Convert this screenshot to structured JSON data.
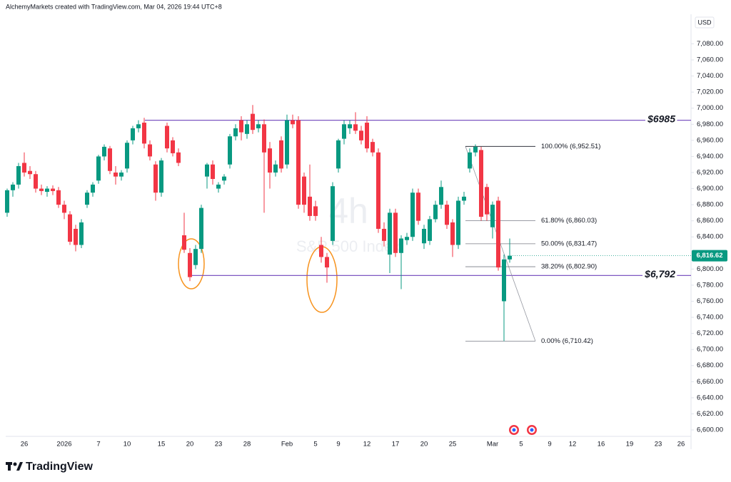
{
  "header": {
    "text": "AlchemyMarkets created with TradingView.com, Mar 04, 2026 19:44 UTC+8"
  },
  "footer": {
    "brand": "TradingView"
  },
  "chart_data": {
    "type": "candlestick",
    "watermark": {
      "interval": "4h",
      "symbol": "S&P 500 Index"
    },
    "currency": "USD",
    "up_color": "#089981",
    "down_color": "#f23645",
    "level_color": "#7e57c2",
    "grid": false,
    "categories": [
      null,
      null,
      null,
      "26",
      null,
      null,
      null,
      null,
      null,
      null,
      "2026",
      null,
      null,
      null,
      null,
      null,
      "7",
      null,
      null,
      null,
      null,
      "10",
      null,
      null,
      null,
      null,
      null,
      "15",
      null,
      null,
      null,
      null,
      "20",
      null,
      null,
      null,
      null,
      "23",
      null,
      null,
      null,
      null,
      "28",
      null,
      null,
      null,
      null,
      null,
      null,
      "Feb",
      null,
      null,
      null,
      null,
      "5",
      null,
      null,
      null,
      "9",
      null,
      null,
      null,
      null,
      "12",
      null,
      null,
      null,
      null,
      "17",
      null,
      null,
      null,
      null,
      "20",
      null,
      null,
      null,
      null,
      "25",
      null,
      null,
      null,
      null,
      null,
      null,
      "Mar",
      null,
      null,
      null,
      null,
      "5",
      null,
      null,
      null,
      null,
      "9",
      null,
      null,
      null,
      "12",
      null,
      null,
      null,
      null,
      "16",
      null,
      null,
      null,
      null,
      "19",
      null,
      null,
      null,
      null,
      "23",
      null,
      null,
      null,
      "26"
    ],
    "open": [
      6870,
      6898,
      6905,
      6932,
      6922,
      6918,
      6900,
      6896,
      6900,
      6898,
      6880,
      6868,
      6850,
      6830,
      6880,
      6895,
      6910,
      6940,
      6950,
      6920,
      6915,
      6925,
      6960,
      6975,
      6982,
      6955,
      6930,
      6895,
      6978,
      6960,
      6945,
      6842,
      6820,
      6805,
      6825,
      6915,
      6930,
      6900,
      6910,
      6930,
      6965,
      6985,
      6968,
      6993,
      6975,
      6980,
      6950,
      6920,
      6960,
      6930,
      6985,
      6985,
      6915,
      6890,
      6878,
      6830,
      6815,
      6835,
      6925,
      6962,
      6975,
      6980,
      6972,
      6982,
      6958,
      6945,
      6850,
      6818,
      6870,
      6820,
      6836,
      6840,
      6895,
      6832,
      6835,
      6862,
      6880,
      6880,
      6858,
      6830,
      6885,
      6925,
      6945,
      6948,
      6902,
      6852,
      6885,
      6760,
      6812,
      null,
      null,
      null,
      null,
      null,
      null,
      null,
      null,
      null,
      null,
      null,
      null,
      null,
      null,
      null,
      null,
      null,
      null,
      null,
      null,
      null,
      null,
      null,
      null,
      null,
      null,
      null,
      null,
      null,
      null
    ],
    "high": [
      6900,
      6908,
      6932,
      6945,
      6928,
      6922,
      6905,
      6903,
      6904,
      6902,
      6885,
      6872,
      6855,
      6862,
      6898,
      6908,
      6942,
      6955,
      6953,
      6928,
      6923,
      6960,
      6978,
      6985,
      6988,
      6960,
      6934,
      6938,
      6982,
      6964,
      6950,
      6870,
      6826,
      6830,
      6880,
      6932,
      6935,
      6908,
      6918,
      6968,
      6980,
      6990,
      6985,
      7004,
      6985,
      6986,
      6958,
      6935,
      6965,
      6992,
      6992,
      6990,
      6920,
      6930,
      6885,
      6840,
      6820,
      6908,
      6962,
      6985,
      6985,
      6995,
      6978,
      6990,
      6962,
      6950,
      6858,
      6875,
      6875,
      6842,
      6845,
      6900,
      6900,
      6855,
      6866,
      6885,
      6910,
      6885,
      6862,
      6890,
      6896,
      6950,
      6955,
      6952,
      6906,
      6884,
      6890,
      6818,
      6838,
      null,
      null,
      null,
      null,
      null,
      null,
      null,
      null,
      null,
      null,
      null,
      null,
      null,
      null,
      null,
      null,
      null,
      null,
      null,
      null,
      null,
      null,
      null,
      null,
      null,
      null,
      null,
      null,
      null,
      null
    ],
    "low": [
      6865,
      6890,
      6900,
      6915,
      6912,
      6895,
      6892,
      6890,
      6892,
      6876,
      6862,
      6830,
      6822,
      6826,
      6876,
      6890,
      6906,
      6935,
      6918,
      6905,
      6910,
      6920,
      6955,
      6970,
      6950,
      6935,
      6885,
      6890,
      6945,
      6940,
      6928,
      6820,
      6785,
      6800,
      6820,
      6900,
      6905,
      6895,
      6905,
      6925,
      6960,
      6960,
      6962,
      6968,
      6970,
      6870,
      6900,
      6915,
      6920,
      6925,
      6975,
      6875,
      6870,
      6860,
      6860,
      6808,
      6783,
      6830,
      6920,
      6955,
      6968,
      6968,
      6955,
      6945,
      6940,
      6845,
      6828,
      6795,
      6815,
      6775,
      6830,
      6835,
      6855,
      6825,
      6830,
      6858,
      6875,
      6850,
      6815,
      6825,
      6880,
      6920,
      6940,
      6860,
      6860,
      6838,
      6798,
      6710.42,
      6808,
      null,
      null,
      null,
      null,
      null,
      null,
      null,
      null,
      null,
      null,
      null,
      null,
      null,
      null,
      null,
      null,
      null,
      null,
      null,
      null,
      null,
      null,
      null,
      null,
      null,
      null,
      null,
      null,
      null,
      null
    ],
    "close": [
      6898,
      6905,
      6928,
      6920,
      6918,
      6900,
      6897,
      6900,
      6897,
      6880,
      6870,
      6834,
      6830,
      6858,
      6895,
      6905,
      6940,
      6952,
      6922,
      6915,
      6920,
      6957,
      6975,
      6980,
      6956,
      6940,
      6895,
      6935,
      6950,
      6944,
      6932,
      6824,
      6790,
      6825,
      6876,
      6930,
      6912,
      6905,
      6915,
      6965,
      6975,
      6970,
      6980,
      6973,
      6980,
      6945,
      6920,
      6930,
      6925,
      6985,
      6980,
      6880,
      6880,
      6866,
      6866,
      6815,
      6802,
      6903,
      6960,
      6980,
      6980,
      6972,
      6960,
      6950,
      6945,
      6850,
      6835,
      6870,
      6820,
      6838,
      6840,
      6895,
      6860,
      6850,
      6862,
      6880,
      6902,
      6855,
      6830,
      6885,
      6890,
      6945,
      6952,
      6865,
      6868,
      6880,
      6802,
      6812,
      6816.62,
      null,
      null,
      null,
      null,
      null,
      null,
      null,
      null,
      null,
      null,
      null,
      null,
      null,
      null,
      null,
      null,
      null,
      null,
      null,
      null,
      null,
      null,
      null,
      null,
      null,
      null,
      null,
      null,
      null,
      null
    ],
    "ylim": [
      6592,
      7115
    ],
    "yticks": [
      {
        "value": 6600,
        "label": "6,600.00"
      },
      {
        "value": 6620,
        "label": "6,620.00"
      },
      {
        "value": 6640,
        "label": "6,640.00"
      },
      {
        "value": 6660,
        "label": "6,660.00"
      },
      {
        "value": 6680,
        "label": "6,680.00"
      },
      {
        "value": 6700,
        "label": "6,700.00"
      },
      {
        "value": 6720,
        "label": "6,720.00"
      },
      {
        "value": 6740,
        "label": "6,740.00"
      },
      {
        "value": 6760,
        "label": "6,760.00"
      },
      {
        "value": 6780,
        "label": "6,780.00"
      },
      {
        "value": 6800,
        "label": "6,800.00"
      },
      {
        "value": 6820,
        "label": "6,820.00"
      },
      {
        "value": 6840,
        "label": "6,840.00"
      },
      {
        "value": 6860,
        "label": "6,860.00"
      },
      {
        "value": 6880,
        "label": "6,880.00"
      },
      {
        "value": 6900,
        "label": "6,900.00"
      },
      {
        "value": 6920,
        "label": "6,920.00"
      },
      {
        "value": 6940,
        "label": "6,940.00"
      },
      {
        "value": 6960,
        "label": "6,960.00"
      },
      {
        "value": 6980,
        "label": "6,980.00"
      },
      {
        "value": 7000,
        "label": "7,000.00"
      },
      {
        "value": 7020,
        "label": "7,020.00"
      },
      {
        "value": 7040,
        "label": "7,040.00"
      },
      {
        "value": 7060,
        "label": "7,060.00"
      },
      {
        "value": 7080,
        "label": "7,080.00"
      }
    ],
    "last_price": {
      "value": 6816.62,
      "label": "6,816.62"
    },
    "levels": [
      {
        "value": 6985,
        "label": "$6985"
      },
      {
        "value": 6792,
        "label": "$6,792"
      }
    ],
    "fib": [
      {
        "value": 6952.51,
        "label": "100.00% (6,952.51)"
      },
      {
        "value": 6860.03,
        "label": "61.80% (6,860.03)"
      },
      {
        "value": 6831.47,
        "label": "50.00% (6,831.47)"
      },
      {
        "value": 6802.9,
        "label": "38.20% (6,802.90)"
      },
      {
        "value": 6710.42,
        "label": "0.00% (6,710.42)"
      }
    ]
  }
}
